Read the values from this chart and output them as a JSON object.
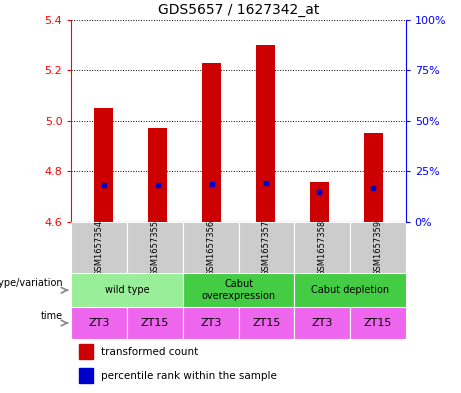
{
  "title": "GDS5657 / 1627342_at",
  "samples": [
    "GSM1657354",
    "GSM1657355",
    "GSM1657356",
    "GSM1657357",
    "GSM1657358",
    "GSM1657359"
  ],
  "bar_tops": [
    5.05,
    4.97,
    5.23,
    5.3,
    4.76,
    4.95
  ],
  "bar_bottom": 4.6,
  "blue_positions": [
    4.745,
    4.745,
    4.75,
    4.755,
    4.72,
    4.735
  ],
  "ylim": [
    4.6,
    5.4
  ],
  "yticks_left": [
    4.6,
    4.8,
    5.0,
    5.2,
    5.4
  ],
  "yticks_right": [
    0,
    25,
    50,
    75,
    100
  ],
  "bar_color": "#cc0000",
  "blue_color": "#0000cc",
  "bar_width": 0.35,
  "genotype_groups": [
    {
      "label": "wild type",
      "start": 0,
      "end": 2,
      "color": "#99ee99"
    },
    {
      "label": "Cabut\noverexpression",
      "start": 2,
      "end": 4,
      "color": "#44cc44"
    },
    {
      "label": "Cabut depletion",
      "start": 4,
      "end": 6,
      "color": "#44cc44"
    }
  ],
  "time_labels": [
    "ZT3",
    "ZT15",
    "ZT3",
    "ZT15",
    "ZT3",
    "ZT15"
  ],
  "time_color": "#ee66ee",
  "sample_bg_color": "#cccccc",
  "legend_red_label": "transformed count",
  "legend_blue_label": "percentile rank within the sample",
  "left_label": "genotype/variation",
  "time_row_label": "time"
}
